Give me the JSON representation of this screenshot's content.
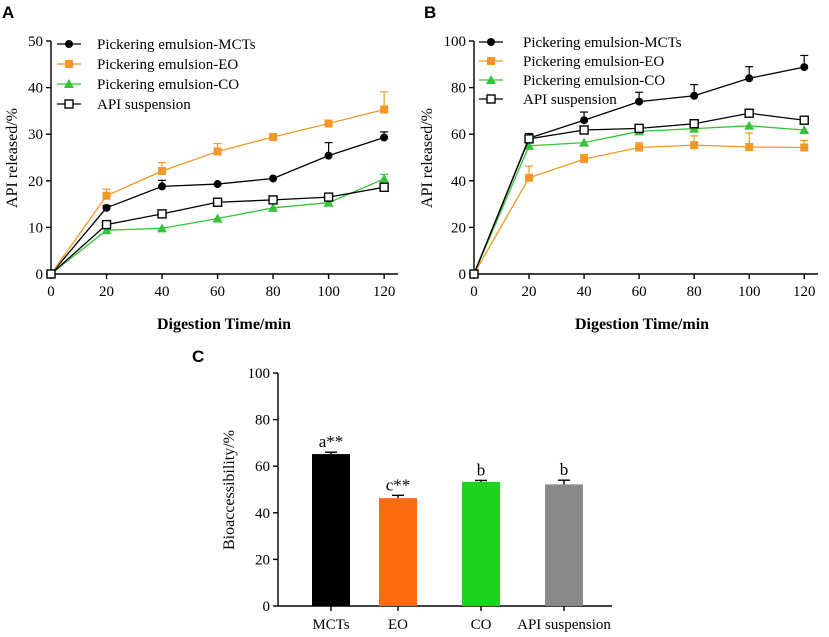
{
  "colors": {
    "MCTs": "#000000",
    "EO": "#f39826",
    "CO": "#34c43a",
    "API": "#000000",
    "bar_MCTs": "#000000",
    "bar_EO": "#ff6a13",
    "bar_CO": "#1ed21e",
    "bar_API": "#8a8a8a"
  },
  "chart_data": [
    {
      "panel": "A",
      "type": "line",
      "xlabel": "Digestion Time/min",
      "ylabel": "API released/%",
      "xlim": [
        0,
        125
      ],
      "ylim": [
        0,
        50
      ],
      "xticks": [
        0,
        20,
        40,
        60,
        80,
        100,
        120
      ],
      "yticks": [
        0,
        10,
        20,
        30,
        40,
        50
      ],
      "x": [
        0,
        20,
        40,
        60,
        80,
        100,
        120
      ],
      "legend_position": "top-left",
      "series": [
        {
          "key": "MCTs",
          "name": "Pickering emulsion-MCTs",
          "marker": "circle",
          "values": [
            0,
            14.2,
            18.8,
            19.3,
            20.5,
            25.4,
            29.3
          ],
          "errors": [
            0,
            0.5,
            1.3,
            0,
            0,
            2.8,
            1.2
          ]
        },
        {
          "key": "EO",
          "name": "Pickering emulsion-EO",
          "marker": "square",
          "values": [
            0,
            16.8,
            22.1,
            26.3,
            29.4,
            32.3,
            35.3
          ],
          "errors": [
            0,
            1.4,
            1.8,
            1.7,
            0,
            0,
            3.8
          ]
        },
        {
          "key": "CO",
          "name": "Pickering emulsion-CO",
          "marker": "triangle",
          "values": [
            0,
            9.4,
            9.8,
            11.9,
            14.2,
            15.3,
            20.4
          ],
          "errors": [
            0,
            0,
            0,
            0,
            0,
            1.0,
            1.0
          ]
        },
        {
          "key": "API",
          "name": "API suspension",
          "marker": "open-square",
          "values": [
            0,
            10.6,
            12.9,
            15.4,
            15.9,
            16.5,
            18.6
          ],
          "errors": [
            0,
            0,
            0,
            0,
            0,
            0,
            0
          ]
        }
      ]
    },
    {
      "panel": "B",
      "type": "line",
      "xlabel": "Digestion Time/min",
      "ylabel": "API released/%",
      "xlim": [
        0,
        125
      ],
      "ylim": [
        0,
        100
      ],
      "xticks": [
        0,
        20,
        40,
        60,
        80,
        100,
        120
      ],
      "yticks": [
        0,
        20,
        40,
        60,
        80,
        100
      ],
      "x": [
        0,
        20,
        40,
        60,
        80,
        100,
        120
      ],
      "legend_position": "top-left",
      "series": [
        {
          "key": "MCTs",
          "name": "Pickering emulsion-MCTs",
          "marker": "circle",
          "values": [
            0,
            58.3,
            66.0,
            74.0,
            76.5,
            84.0,
            88.8
          ],
          "errors": [
            0,
            2.0,
            3.5,
            4.0,
            4.8,
            5.0,
            5.0
          ]
        },
        {
          "key": "EO",
          "name": "Pickering emulsion-EO",
          "marker": "square",
          "values": [
            0,
            41.3,
            49.3,
            54.3,
            55.3,
            54.5,
            54.3
          ],
          "errors": [
            0,
            5.0,
            2.0,
            2.0,
            4.0,
            6.0,
            3.0
          ]
        },
        {
          "key": "CO",
          "name": "Pickering emulsion-CO",
          "marker": "triangle",
          "values": [
            0,
            55.0,
            56.4,
            61.2,
            62.4,
            63.6,
            61.8
          ],
          "errors": [
            0,
            2.0,
            0,
            2.0,
            0,
            0,
            0
          ]
        },
        {
          "key": "API",
          "name": "API suspension",
          "marker": "open-square",
          "values": [
            0,
            58.0,
            61.8,
            62.5,
            64.5,
            69.0,
            66.0
          ],
          "errors": [
            0,
            0,
            0,
            0,
            0,
            0,
            0
          ]
        }
      ]
    },
    {
      "panel": "C",
      "type": "bar",
      "xlabel": "",
      "ylabel": "Bioaccessibility/%",
      "ylim": [
        0,
        100
      ],
      "yticks": [
        0,
        20,
        40,
        60,
        80,
        100
      ],
      "categories": [
        "MCTs",
        "EO",
        "CO",
        "API suspension"
      ],
      "color_keys": [
        "bar_MCTs",
        "bar_EO",
        "bar_CO",
        "bar_API"
      ],
      "values": [
        65.2,
        46.3,
        53.3,
        52.2
      ],
      "errors": [
        0.8,
        1.2,
        0.6,
        1.8
      ],
      "annotations": [
        "a**",
        "c**",
        "b",
        "b"
      ]
    }
  ]
}
